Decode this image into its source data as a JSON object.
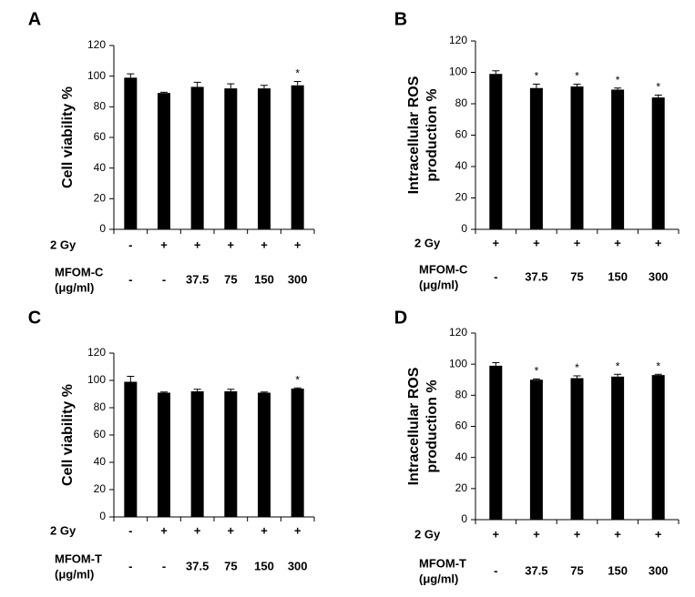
{
  "chart_data": [
    {
      "type": "bar",
      "panel": "A",
      "ylabel": [
        "Cell viability %"
      ],
      "values": [
        99,
        89,
        93,
        92,
        92,
        94
      ],
      "errors": [
        2.5,
        0.5,
        3,
        3,
        2,
        2.5
      ],
      "significance": [
        null,
        null,
        null,
        null,
        null,
        "*"
      ],
      "color": "#000000",
      "ylim": [
        0,
        120
      ],
      "yticks": [
        0,
        20,
        40,
        60,
        80,
        100,
        120
      ],
      "rows": [
        {
          "label": [
            "2 Gy"
          ],
          "cells": [
            "-",
            "+",
            "+",
            "+",
            "+",
            "+"
          ]
        },
        {
          "label": [
            "MFOM-C",
            "(μg/ml)"
          ],
          "cells": [
            "-",
            "-",
            "37.5",
            "75",
            "150",
            "300"
          ]
        }
      ]
    },
    {
      "type": "bar",
      "panel": "B",
      "ylabel": [
        "Intracellular ROS",
        "production %"
      ],
      "values": [
        99,
        90,
        91,
        89,
        84
      ],
      "errors": [
        2,
        2.5,
        1.5,
        1,
        1.5
      ],
      "significance": [
        null,
        "*",
        "*",
        "*",
        "*"
      ],
      "color": "#000000",
      "ylim": [
        0,
        120
      ],
      "yticks": [
        0,
        20,
        40,
        60,
        80,
        100,
        120
      ],
      "rows": [
        {
          "label": [
            "2 Gy"
          ],
          "cells": [
            "+",
            "+",
            "+",
            "+",
            "+"
          ]
        },
        {
          "label": [
            "MFOM-C",
            "(μg/ml)"
          ],
          "cells": [
            "-",
            "37.5",
            "75",
            "150",
            "300"
          ]
        }
      ]
    },
    {
      "type": "bar",
      "panel": "C",
      "ylabel": [
        "Cell viability %"
      ],
      "values": [
        99,
        91,
        92,
        92,
        91,
        94
      ],
      "errors": [
        4,
        0.5,
        1.5,
        1.5,
        0.5,
        0.5
      ],
      "significance": [
        null,
        null,
        null,
        null,
        null,
        "*"
      ],
      "color": "#000000",
      "ylim": [
        0,
        120
      ],
      "yticks": [
        0,
        20,
        40,
        60,
        80,
        100,
        120
      ],
      "rows": [
        {
          "label": [
            "2 Gy"
          ],
          "cells": [
            "-",
            "+",
            "+",
            "+",
            "+",
            "+"
          ]
        },
        {
          "label": [
            "MFOM-T",
            "(μg/ml)"
          ],
          "cells": [
            "-",
            "-",
            "37.5",
            "75",
            "150",
            "300"
          ]
        }
      ]
    },
    {
      "type": "bar",
      "panel": "D",
      "ylabel": [
        "Intracellular ROS",
        "production %"
      ],
      "values": [
        99,
        90,
        91,
        92,
        93
      ],
      "errors": [
        2,
        0.5,
        1.5,
        1.5,
        0.5
      ],
      "significance": [
        null,
        "*",
        "*",
        "*",
        "*"
      ],
      "color": "#000000",
      "ylim": [
        0,
        120
      ],
      "yticks": [
        0,
        20,
        40,
        60,
        80,
        100,
        120
      ],
      "rows": [
        {
          "label": [
            "2 Gy"
          ],
          "cells": [
            "+",
            "+",
            "+",
            "+",
            "+"
          ]
        },
        {
          "label": [
            "MFOM-T",
            "(μg/ml)"
          ],
          "cells": [
            "-",
            "37.5",
            "75",
            "150",
            "300"
          ]
        }
      ]
    }
  ]
}
